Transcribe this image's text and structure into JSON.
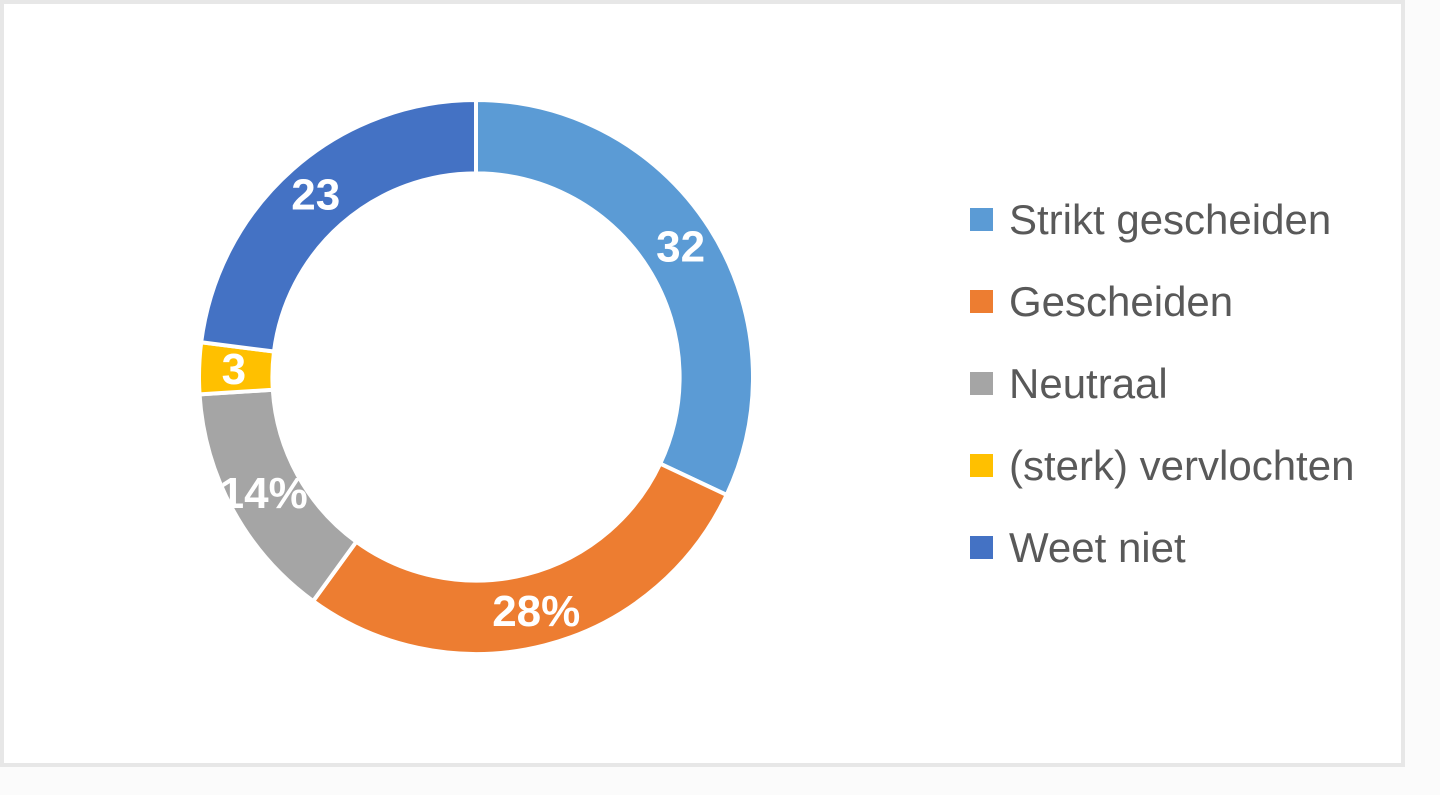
{
  "panel": {
    "background_color": "#ffffff",
    "border_color": "#e7e7e7"
  },
  "chart_data": {
    "type": "pie",
    "subtype": "donut",
    "title": "",
    "categories": [
      "Strikt gescheiden",
      "Gescheiden",
      "Neutraal",
      "(sterk) vervlochten",
      "Weet niet"
    ],
    "values": [
      32,
      28,
      14,
      3,
      23
    ],
    "data_labels": [
      "32",
      "28%",
      "14%",
      "3",
      "23"
    ],
    "colors": [
      "#5B9BD5",
      "#ED7D31",
      "#A5A5A5",
      "#FFC000",
      "#4472C4"
    ],
    "legend_position": "right",
    "start_angle_deg": 0,
    "direction": "clockwise",
    "inner_radius_ratio": 0.735,
    "separator_color": "#FFFFFF",
    "label_text_color": "#FFFFFF",
    "legend_text_color": "#595959",
    "grid": false
  }
}
